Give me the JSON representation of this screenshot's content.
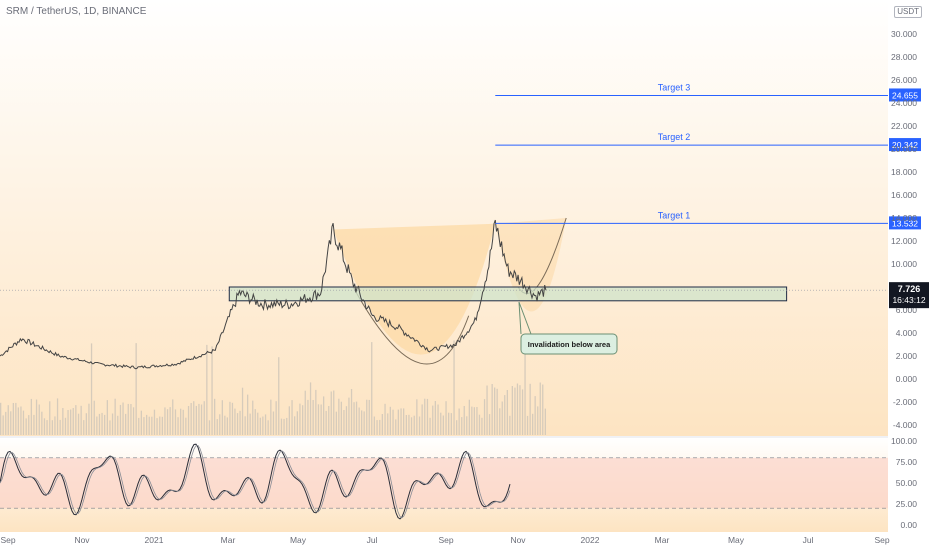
{
  "header": {
    "symbol_line": "SRM / TetherUS, 1D, BINANCE",
    "currency": "USDT"
  },
  "colors": {
    "bg_top": "#ffffff",
    "bg_bottom": "#fde4c2",
    "cup_fill": "#fcd9a6",
    "zone_fill": "#cfe3c9",
    "target_line": "#2962ff",
    "tag_bg": "#2962ff",
    "price_line": "#444444",
    "volume": "#d6cbbb",
    "stoch_band": "#fbd3c7",
    "note_bg": "#dcefe1",
    "note_border": "#6b8f73"
  },
  "price_axis": {
    "ticks": [
      "30.000",
      "28.000",
      "26.000",
      "24.000",
      "22.000",
      "20.000",
      "18.000",
      "16.000",
      "14.000",
      "12.000",
      "10.000",
      "8.000",
      "6.000",
      "4.000",
      "2.000",
      "0.000",
      "-2.000",
      "-4.000"
    ]
  },
  "time_axis": {
    "ticks": [
      "Sep",
      "Nov",
      "2021",
      "Mar",
      "May",
      "Jul",
      "Sep",
      "Nov",
      "2022",
      "Mar",
      "May",
      "Jul",
      "Sep"
    ]
  },
  "targets": [
    {
      "label": "Target 3",
      "tag": "24.655"
    },
    {
      "label": "Target 2",
      "tag": "20.342"
    },
    {
      "label": "Target 1",
      "tag": "13.532"
    }
  ],
  "last_price": {
    "value": "7.726",
    "countdown": "16:43:12"
  },
  "annotation": {
    "text": "Invalidation below area"
  },
  "stoch_axis": {
    "ticks": [
      "100.00",
      "75.00",
      "50.00",
      "25.00",
      "0.00"
    ]
  },
  "chart_data": {
    "type": "line",
    "title": "SRM / TetherUS, 1D, BINANCE",
    "x": [
      "2020-08-15",
      "2020-09-01",
      "2020-10-01",
      "2020-11-01",
      "2020-12-01",
      "2021-01-01",
      "2021-02-01",
      "2021-02-20",
      "2021-03-10",
      "2021-04-01",
      "2021-04-25",
      "2021-05-05",
      "2021-05-20",
      "2021-06-05",
      "2021-06-25",
      "2021-07-20",
      "2021-08-10",
      "2021-08-25",
      "2021-09-05",
      "2021-09-10",
      "2021-09-20",
      "2021-10-01",
      "2021-10-12",
      "2021-10-20"
    ],
    "series": [
      {
        "values": [
          2.0,
          3.5,
          2.0,
          1.3,
          1.0,
          1.3,
          2.5,
          7.5,
          6.5,
          6.5,
          7.5,
          13.0,
          8.5,
          5.5,
          4.5,
          2.5,
          3.0,
          5.0,
          10.0,
          13.5,
          9.5,
          8.5,
          7.2,
          7.73
        ]
      }
    ],
    "ylim": [
      -5,
      31
    ],
    "zone": [
      6.8,
      8.0
    ],
    "targets": [
      13.532,
      20.342,
      24.655
    ],
    "last_price": 7.726,
    "stoch_ylim": [
      0,
      100
    ],
    "stoch_levels": [
      80,
      20
    ],
    "grid": false,
    "legend": "none"
  }
}
